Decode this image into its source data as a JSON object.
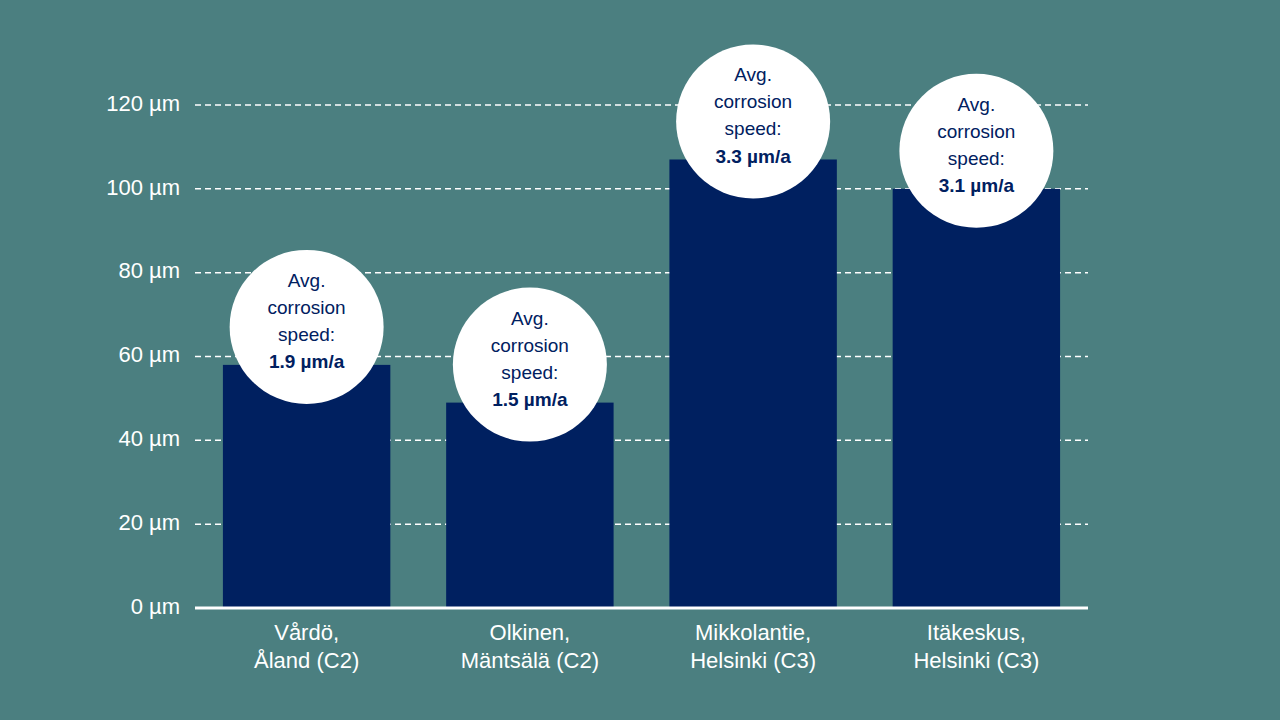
{
  "chart_data": {
    "type": "bar",
    "categories": [
      "Vårdö,\nÅland (C2)",
      "Olkinen,\nMäntsälä (C2)",
      "Mikkolantie,\nHelsinki (C3)",
      "Itäkeskus,\nHelsinki (C3)"
    ],
    "values": [
      58,
      49,
      107,
      100
    ],
    "color": "#002060",
    "ylim": [
      0,
      120
    ],
    "yticks": [
      {
        "value": 0,
        "label": "0 µm"
      },
      {
        "value": 20,
        "label": "20 µm"
      },
      {
        "value": 40,
        "label": "40 µm"
      },
      {
        "value": 60,
        "label": "60 µm"
      },
      {
        "value": 80,
        "label": "80 µm"
      },
      {
        "value": 100,
        "label": "100 µm"
      },
      {
        "value": 120,
        "label": "120 µm"
      }
    ],
    "grid": true,
    "annotations": [
      {
        "label": "Avg. corrosion speed:",
        "text": "1.9 µm/a"
      },
      {
        "label": "Avg. corrosion speed:",
        "text": "1.5 µm/a"
      },
      {
        "label": "Avg. corrosion speed:",
        "text": "3.3 µm/a"
      },
      {
        "label": "Avg. corrosion speed:",
        "text": "3.1 µm/a"
      }
    ]
  }
}
